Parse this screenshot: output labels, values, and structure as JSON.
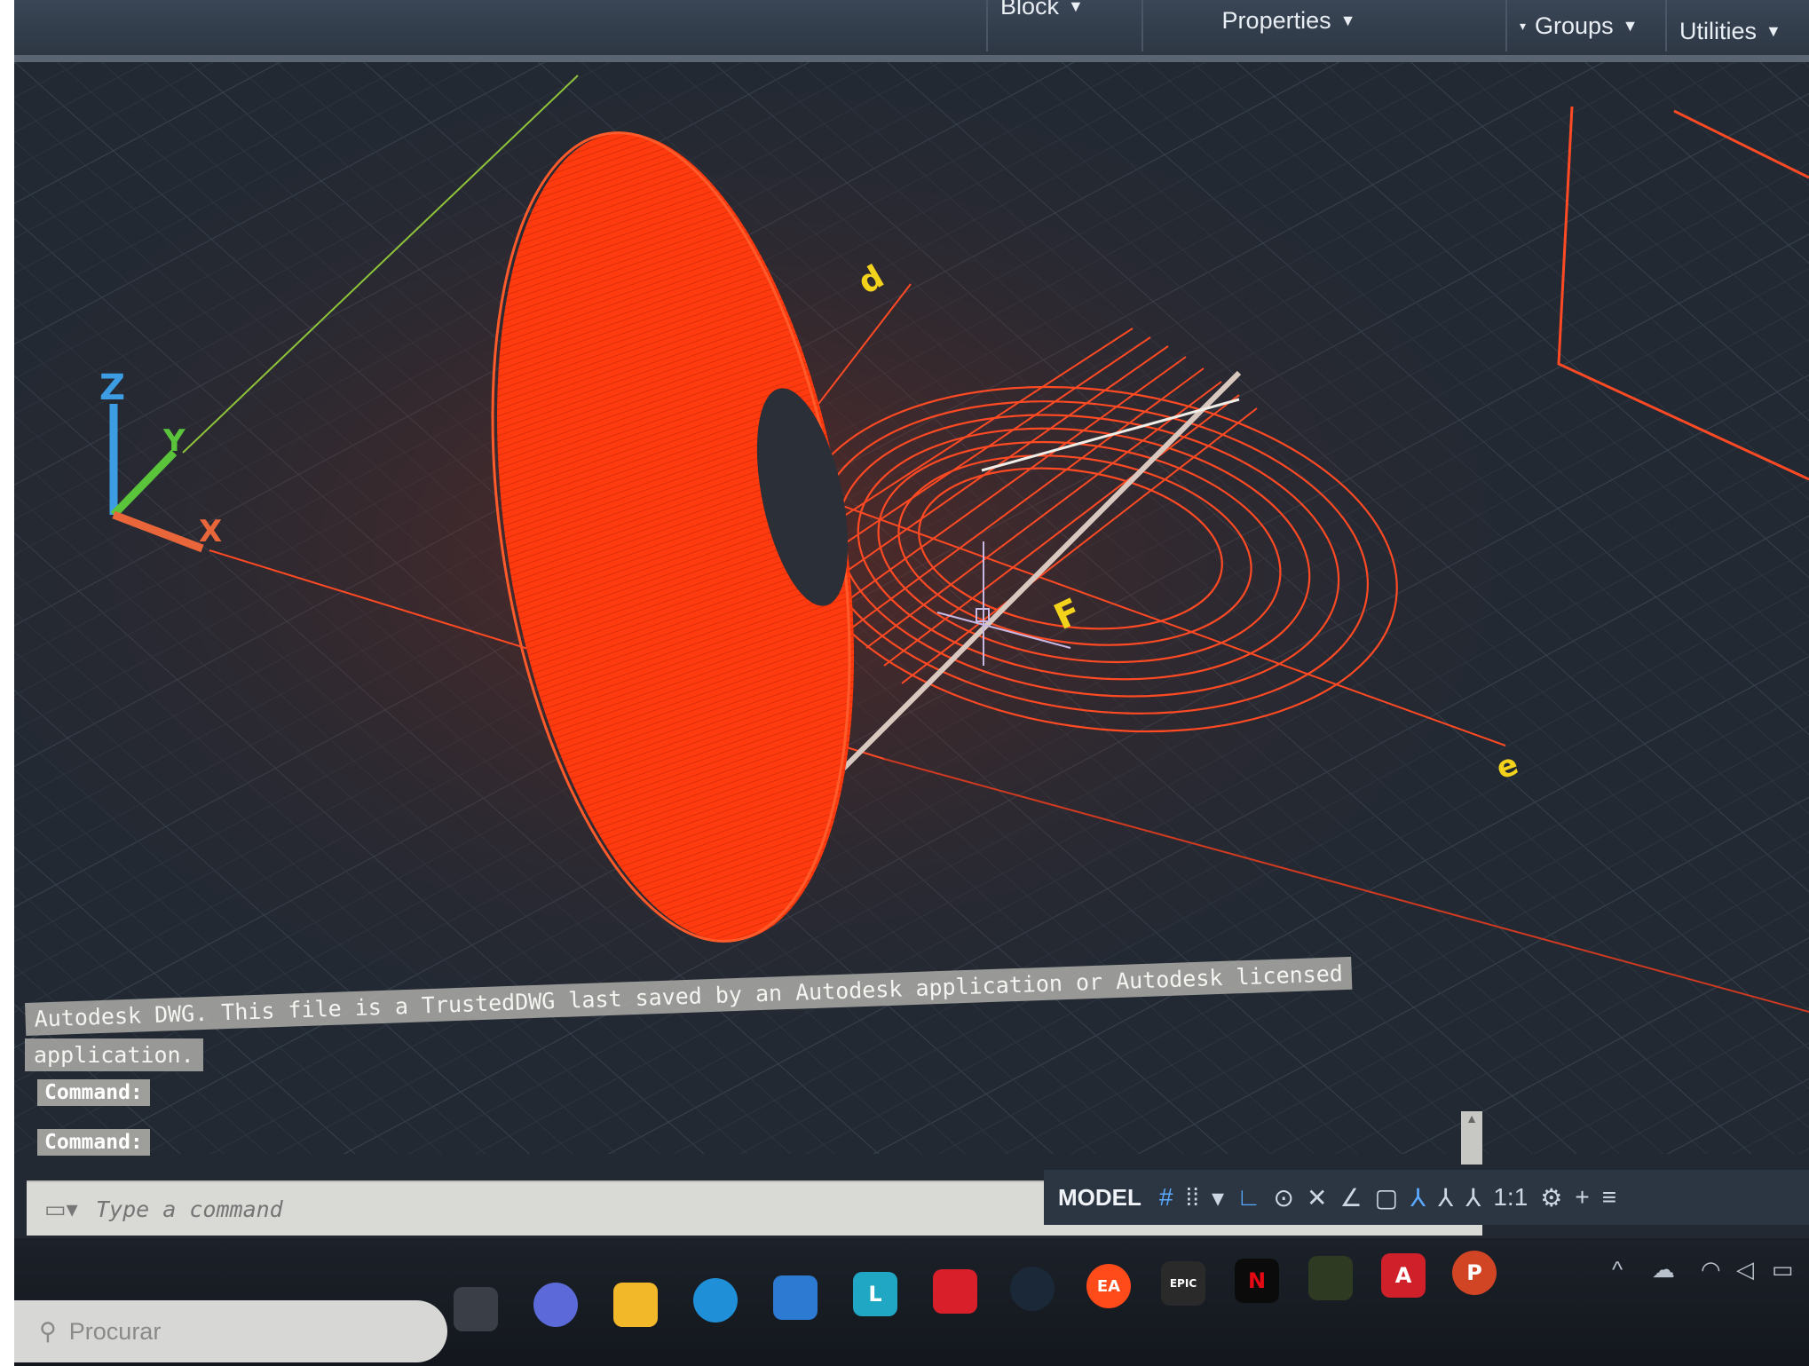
{
  "ribbon": {
    "panels": [
      {
        "label": "Block",
        "left": 0
      },
      {
        "label": "Properties"
      },
      {
        "label": "Groups"
      },
      {
        "label": "Utilities"
      }
    ]
  },
  "viewport": {
    "axis_labels": {
      "x": "X",
      "y": "Y",
      "z": "Z"
    },
    "annotations": {
      "d": "d",
      "f": "F",
      "e": "e"
    },
    "colors": {
      "surface": "#ff3a0e",
      "lines": "#ff4a24",
      "labels": "#f3d21b",
      "background": "#222933"
    }
  },
  "command_line": {
    "message_line1": "Autodesk DWG.  This file is a TrustedDWG last saved by an Autodesk application or Autodesk licensed",
    "message_line2": "application.",
    "prompts": [
      "Command:",
      "Command:"
    ],
    "input_placeholder": "Type a command"
  },
  "statusbar": {
    "model_label": "MODEL",
    "scale_label": "1:1"
  },
  "taskbar": {
    "search_placeholder": "Procurar",
    "apps": [
      {
        "name": "task-view",
        "glyph": ""
      },
      {
        "name": "chat",
        "glyph": ""
      },
      {
        "name": "file-explorer",
        "glyph": ""
      },
      {
        "name": "edge",
        "glyph": ""
      },
      {
        "name": "store",
        "glyph": ""
      },
      {
        "name": "l-app",
        "glyph": "L"
      },
      {
        "name": "mcafee",
        "glyph": ""
      },
      {
        "name": "steam",
        "glyph": ""
      },
      {
        "name": "ea",
        "glyph": "EA"
      },
      {
        "name": "epic-games",
        "glyph": "EPIC"
      },
      {
        "name": "netflix",
        "glyph": "N"
      },
      {
        "name": "nvidia",
        "glyph": ""
      },
      {
        "name": "autocad",
        "glyph": "A"
      },
      {
        "name": "powerpoint",
        "glyph": "P"
      }
    ]
  }
}
